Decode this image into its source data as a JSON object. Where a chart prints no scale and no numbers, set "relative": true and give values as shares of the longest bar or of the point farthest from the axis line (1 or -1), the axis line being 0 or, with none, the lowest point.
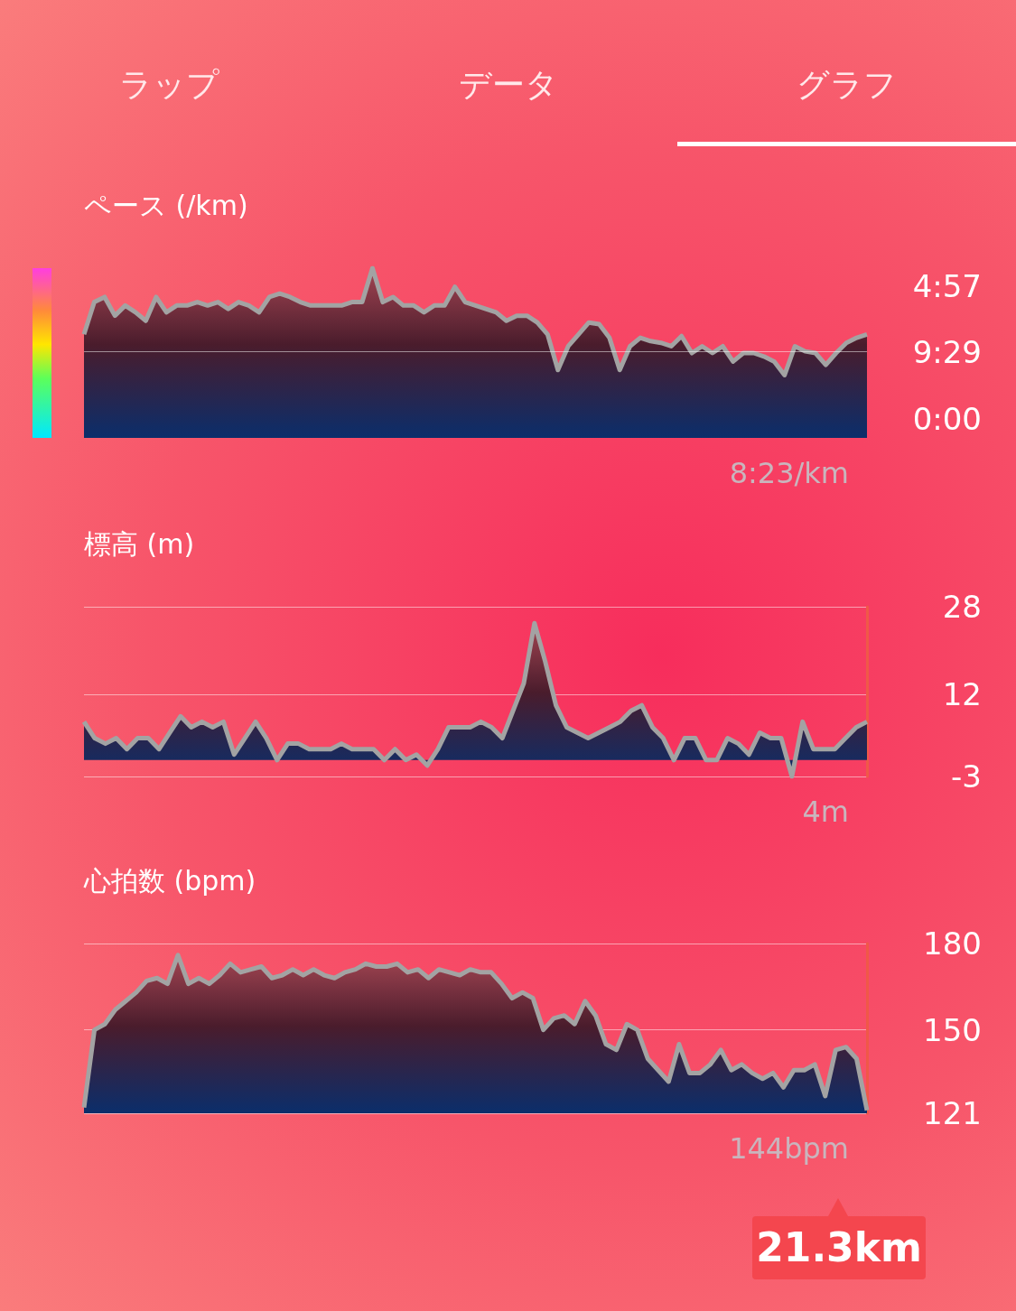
{
  "chart_data": [
    {
      "type": "other",
      "annotations": [
        "ラップ",
        "データ",
        "グラフ"
      ]
    },
    {
      "type": "area",
      "title": "ペース (/km)",
      "color": "#a3a3a3",
      "marker": "none",
      "relative": true,
      "tick_labels": false,
      "annotations": [
        "8:23/km",
        "4:57",
        "9:29",
        "0:00"
      ],
      "ref_lines": [
        {
          "axis": "y",
          "value": 0.51
        }
      ],
      "categories": [
        null,
        null,
        null,
        null,
        null,
        null,
        null,
        null,
        null,
        null,
        null,
        null,
        null,
        null,
        null,
        null,
        null,
        null,
        null,
        null,
        null,
        null,
        null,
        null,
        null,
        null,
        null,
        null,
        null,
        null,
        null,
        null,
        null,
        null,
        null,
        null,
        null,
        null,
        null,
        null,
        null,
        null,
        null,
        null,
        null,
        null,
        null,
        null,
        null,
        null,
        null,
        null,
        null,
        null,
        null,
        null,
        null,
        null,
        null,
        null,
        null,
        null,
        null,
        null,
        null,
        null,
        null,
        null,
        null,
        null,
        null,
        null,
        null,
        null,
        null,
        null,
        null
      ],
      "values": [
        0.61,
        0.8,
        0.83,
        0.72,
        0.78,
        0.74,
        0.69,
        0.83,
        0.74,
        0.78,
        0.78,
        0.8,
        0.78,
        0.8,
        0.76,
        0.8,
        0.78,
        0.74,
        0.83,
        0.85,
        0.83,
        0.8,
        0.78,
        0.78,
        0.78,
        0.78,
        0.8,
        0.8,
        1,
        0.8,
        0.83,
        0.78,
        0.78,
        0.74,
        0.78,
        0.78,
        0.89,
        0.8,
        0.78,
        0.76,
        0.74,
        0.69,
        0.72,
        0.72,
        0.68,
        0.61,
        0.4,
        0.54,
        0.61,
        0.68,
        0.67,
        0.59,
        0.4,
        0.54,
        0.59,
        0.57,
        0.56,
        0.54,
        0.6,
        0.5,
        0.54,
        0.5,
        0.54,
        0.45,
        0.5,
        0.5,
        0.48,
        0.45,
        0.37,
        0.54,
        0.51,
        0.5,
        0.43,
        0.5,
        0.56,
        0.59,
        0.61
      ]
    },
    {
      "type": "area",
      "title": "標高 (m)",
      "color": "#a3a3a3",
      "marker": "none",
      "grid": "y",
      "tick_labels": "y",
      "annotations": [
        "4m"
      ],
      "ylim": [
        -3,
        28
      ],
      "yticks": [
        28,
        12,
        -3
      ],
      "categories": [
        null,
        null,
        null,
        null,
        null,
        null,
        null,
        null,
        null,
        null,
        null,
        null,
        null,
        null,
        null,
        null,
        null,
        null,
        null,
        null,
        null,
        null,
        null,
        null,
        null,
        null,
        null,
        null,
        null,
        null,
        null,
        null,
        null,
        null,
        null,
        null,
        null,
        null,
        null,
        null,
        null,
        null,
        null,
        null,
        null,
        null,
        null,
        null,
        null,
        null,
        null,
        null,
        null,
        null,
        null,
        null,
        null,
        null,
        null,
        null,
        null,
        null,
        null,
        null,
        null,
        null,
        null,
        null,
        null,
        null,
        null,
        null,
        null,
        null
      ],
      "values": [
        7,
        4,
        3,
        4,
        2,
        4,
        4,
        2,
        5,
        8,
        6,
        7,
        6,
        7,
        1,
        4,
        7,
        4,
        0,
        3,
        3,
        2,
        2,
        2,
        3,
        2,
        2,
        2,
        0,
        2,
        0,
        1,
        -1,
        2,
        6,
        6,
        6,
        7,
        6,
        4,
        9,
        14,
        25,
        18,
        10,
        6,
        5,
        4,
        5,
        6,
        7,
        9,
        10,
        6,
        4,
        0,
        4,
        4,
        0,
        0,
        4,
        3,
        1,
        5,
        4,
        4,
        -3,
        7,
        2,
        2,
        2,
        4,
        6,
        7
      ]
    },
    {
      "type": "area",
      "title": "心拍数 (bpm)",
      "color": "#a3a3a3",
      "marker": "none",
      "grid": "y",
      "tick_labels": "y",
      "annotations": [
        "144bpm",
        "21.3km"
      ],
      "ylim": [
        121,
        180
      ],
      "yticks": [
        180,
        150,
        121
      ],
      "categories": [
        null,
        null,
        null,
        null,
        null,
        null,
        null,
        null,
        null,
        null,
        null,
        null,
        null,
        null,
        null,
        null,
        null,
        null,
        null,
        null,
        null,
        null,
        null,
        null,
        null,
        null,
        null,
        null,
        null,
        null,
        null,
        null,
        null,
        null,
        null,
        null,
        null,
        null,
        null,
        null,
        null,
        null,
        null,
        null,
        null,
        null,
        null,
        null,
        null,
        null,
        null,
        null,
        null,
        null,
        null,
        null,
        null,
        null,
        null,
        null,
        null,
        null,
        null,
        null,
        null,
        null,
        null,
        null,
        null,
        null,
        null,
        null,
        null,
        null,
        null,
        null
      ],
      "values": [
        123,
        150,
        152,
        157,
        160,
        163,
        167,
        168,
        166,
        176,
        166,
        168,
        166,
        169,
        173,
        170,
        171,
        172,
        168,
        169,
        171,
        169,
        171,
        169,
        168,
        170,
        171,
        173,
        172,
        172,
        173,
        170,
        171,
        168,
        171,
        170,
        169,
        171,
        170,
        170,
        166,
        161,
        163,
        161,
        150,
        154,
        155,
        152,
        160,
        155,
        145,
        143,
        152,
        150,
        140,
        136,
        132,
        145,
        135,
        135,
        138,
        143,
        136,
        138,
        135,
        133,
        135,
        130,
        136,
        136,
        138,
        127,
        143,
        144,
        140,
        122
      ]
    }
  ]
}
